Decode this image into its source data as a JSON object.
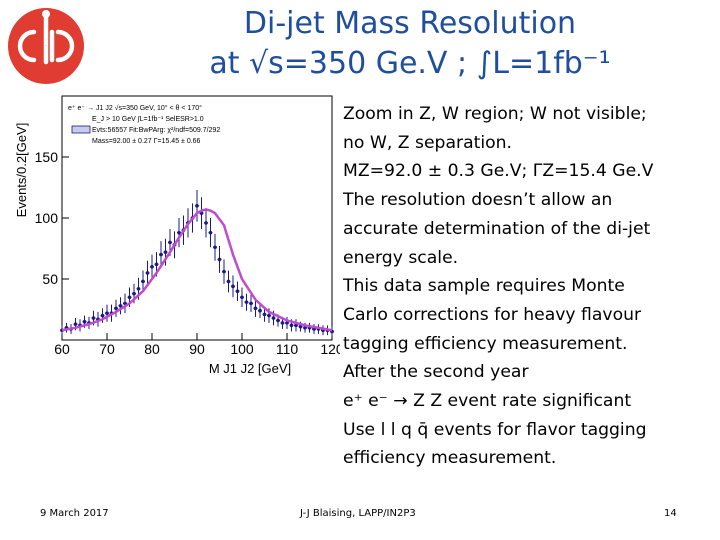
{
  "logo": {
    "text": "CLIC",
    "accent": "#e03c31"
  },
  "title": {
    "line1": "Di-jet Mass Resolution",
    "line2": "at √s=350 Ge.V ; ∫L=1fb⁻¹",
    "color": "#1f4e9e"
  },
  "text_lines": [
    "Zoom in Z, W region; W not visible;",
    "no W, Z separation.",
    "MZ=92.0 ± 0.3 Ge.V;  ΓZ=15.4 Ge.V",
    "The resolution doesn’t allow an",
    "accurate determination of the di-jet",
    "energy scale.",
    "This data sample requires Monte",
    "Carlo corrections for heavy flavour",
    "tagging efficiency measurement.",
    "After the second year",
    "e⁺ e⁻ →  Z Z event rate significant",
    "Use l l q q̄ events for flavor tagging",
    "efficiency measurement."
  ],
  "footer": {
    "date": "9 March 2017",
    "author": "J-J Blaising, LAPP/IN2P3",
    "page": "14"
  },
  "chart_data": {
    "type": "scatter",
    "title": "",
    "xlabel": "M J1 J2 [GeV]",
    "ylabel": "Events/0.2[GeV]",
    "xlim": [
      60,
      120
    ],
    "ylim": [
      0,
      200
    ],
    "x_ticks": [
      "60",
      "70",
      "80",
      "90",
      "100",
      "110",
      "120"
    ],
    "y_ticks": [
      "50",
      "100",
      "150"
    ],
    "legend_lines": [
      "e⁺ e⁻ → J1 J2 √s=350 GeV, 10° < θ < 170°",
      "E_J > 10 GeV  ∫L=1fb⁻¹  SelESR>1.0",
      "Evts:56557  Fit:BwPArg: χ²/ndf=509.7/292",
      "Mass=92.00 ± 0.27  Γ=15.45 ± 0.66"
    ],
    "series": [
      {
        "name": "data",
        "x": [
          60,
          61,
          62,
          63,
          64,
          65,
          66,
          67,
          68,
          69,
          70,
          71,
          72,
          73,
          74,
          75,
          76,
          77,
          78,
          79,
          80,
          81,
          82,
          83,
          84,
          85,
          86,
          87,
          88,
          89,
          90,
          91,
          92,
          93,
          94,
          95,
          96,
          97,
          98,
          99,
          100,
          101,
          102,
          103,
          104,
          105,
          106,
          107,
          108,
          109,
          110,
          111,
          112,
          113,
          114,
          115,
          116,
          117,
          118,
          119,
          120
        ],
        "y": [
          8,
          10,
          9,
          13,
          12,
          15,
          14,
          18,
          17,
          20,
          22,
          22,
          26,
          28,
          30,
          35,
          38,
          42,
          48,
          55,
          60,
          62,
          70,
          72,
          80,
          78,
          88,
          90,
          96,
          100,
          110,
          104,
          96,
          88,
          76,
          66,
          56,
          48,
          44,
          40,
          35,
          31,
          30,
          26,
          24,
          21,
          20,
          18,
          16,
          14,
          14,
          12,
          12,
          11,
          10,
          10,
          9,
          9,
          8,
          8,
          7
        ],
        "errors": [
          4,
          4,
          4,
          5,
          5,
          5,
          5,
          6,
          6,
          6,
          7,
          7,
          7,
          7,
          8,
          8,
          8,
          9,
          9,
          10,
          10,
          10,
          11,
          11,
          11,
          11,
          12,
          12,
          12,
          12,
          13,
          13,
          12,
          12,
          11,
          11,
          10,
          9,
          9,
          8,
          8,
          7,
          7,
          7,
          6,
          6,
          6,
          6,
          5,
          5,
          5,
          5,
          5,
          4,
          4,
          4,
          4,
          4,
          4,
          4,
          4
        ]
      },
      {
        "name": "fit",
        "x": [
          60,
          63,
          66,
          69,
          72,
          75,
          78,
          81,
          84,
          86,
          88,
          90,
          91,
          92,
          93,
          94,
          96,
          98,
          100,
          103,
          106,
          110,
          114,
          117,
          120
        ],
        "y": [
          8,
          10,
          13,
          17,
          23,
          30,
          40,
          55,
          72,
          84,
          95,
          104,
          106,
          107,
          106,
          104,
          94,
          70,
          50,
          33,
          23,
          16,
          12,
          10,
          8
        ]
      }
    ],
    "colors": {
      "data": "#1a1a8c",
      "fit": "#c04bd0"
    }
  }
}
